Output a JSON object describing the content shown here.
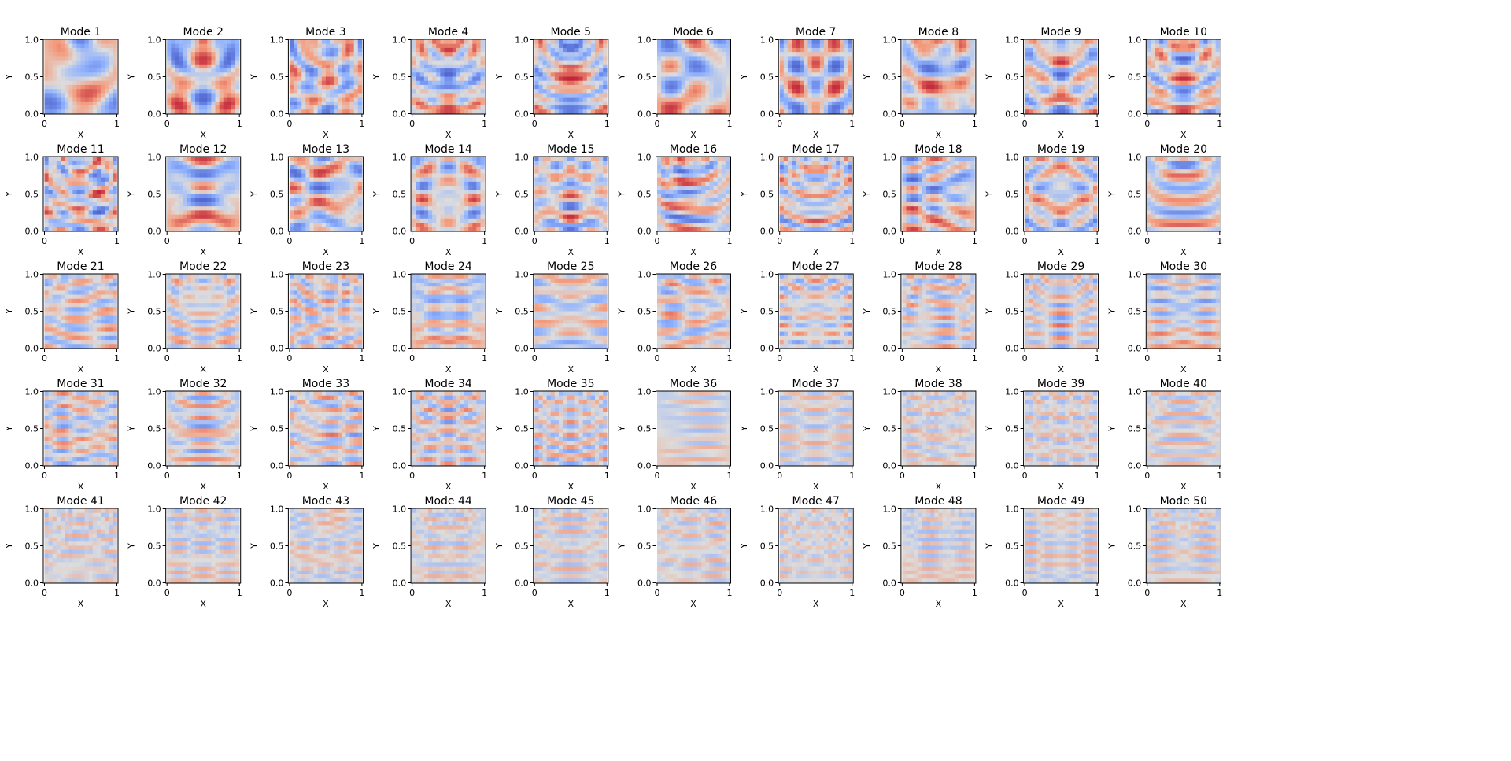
{
  "chart_data": {
    "type": "heatmap",
    "layout": {
      "rows": 5,
      "cols": 10
    },
    "panel_titles": [
      "Mode 1",
      "Mode 2",
      "Mode 3",
      "Mode 4",
      "Mode 5",
      "Mode 6",
      "Mode 7",
      "Mode 8",
      "Mode 9",
      "Mode 10",
      "Mode 11",
      "Mode 12",
      "Mode 13",
      "Mode 14",
      "Mode 15",
      "Mode 16",
      "Mode 17",
      "Mode 18",
      "Mode 19",
      "Mode 20",
      "Mode 21",
      "Mode 22",
      "Mode 23",
      "Mode 24",
      "Mode 25",
      "Mode 26",
      "Mode 27",
      "Mode 28",
      "Mode 29",
      "Mode 30",
      "Mode 31",
      "Mode 32",
      "Mode 33",
      "Mode 34",
      "Mode 35",
      "Mode 36",
      "Mode 37",
      "Mode 38",
      "Mode 39",
      "Mode 40",
      "Mode 41",
      "Mode 42",
      "Mode 43",
      "Mode 44",
      "Mode 45",
      "Mode 46",
      "Mode 47",
      "Mode 48",
      "Mode 49",
      "Mode 50"
    ],
    "xlabel": "X",
    "ylabel": "Y",
    "xlim": [
      0,
      1
    ],
    "ylim": [
      0,
      1
    ],
    "x_ticks": [
      "0",
      "1"
    ],
    "y_ticks": [
      "0.0",
      "0.5",
      "1.0"
    ],
    "colormap": "coolwarm",
    "grid": false,
    "legend": "none"
  },
  "colors": {
    "cold": "#3b4cc0",
    "neutral": "#dddddd",
    "warm": "#b40426",
    "axes": "#000000"
  }
}
